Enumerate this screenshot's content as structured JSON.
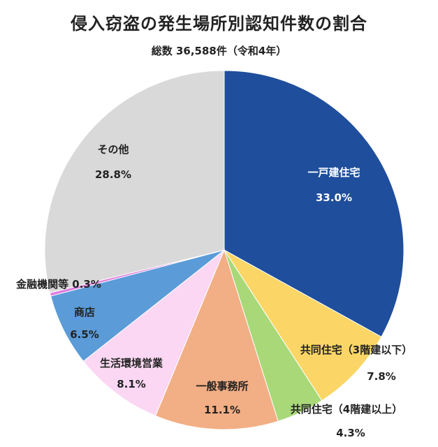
{
  "chart_data": {
    "type": "pie",
    "title": "侵入窃盗の発生場所別認知件数の割合",
    "subtitle": "総数 36,588件（令和4年）",
    "slices": [
      {
        "label": "一戸建住宅",
        "value": 33.0,
        "display": "33.0%",
        "color": "#1f4e9c"
      },
      {
        "label": "共同住宅（3階建以下）",
        "value": 7.8,
        "display": "7.8%",
        "color": "#fbd666"
      },
      {
        "label": "共同住宅（4階建以上）",
        "value": 4.3,
        "display": "4.3%",
        "color": "#a8d878"
      },
      {
        "label": "一般事務所",
        "value": 11.1,
        "display": "11.1%",
        "color": "#f2ae84"
      },
      {
        "label": "生活環境営業",
        "value": 8.1,
        "display": "8.1%",
        "color": "#fbd7f3"
      },
      {
        "label": "商店",
        "value": 6.5,
        "display": "6.5%",
        "color": "#5b9bd8"
      },
      {
        "label": "金融機関等",
        "value": 0.3,
        "display": "0.3%",
        "color": "#e07ee0"
      },
      {
        "label": "その他",
        "value": 28.8,
        "display": "28.8%",
        "color": "#d9d9d9"
      }
    ]
  }
}
